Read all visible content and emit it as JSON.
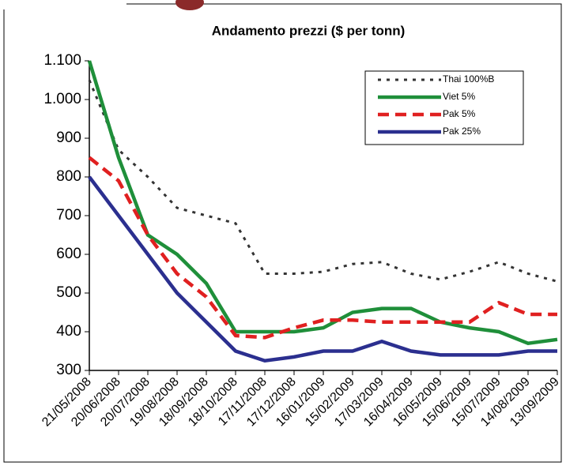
{
  "chart_data": {
    "type": "line",
    "title": "Andamento prezzi ($ per tonn)",
    "categories": [
      "21/05/2008",
      "20/06/2008",
      "20/07/2008",
      "19/08/2008",
      "18/09/2008",
      "18/10/2008",
      "17/11/2008",
      "17/12/2008",
      "16/01/2009",
      "15/02/2009",
      "17/03/2009",
      "16/04/2009",
      "16/05/2009",
      "15/06/2009",
      "15/07/2009",
      "14/08/2009",
      "13/09/2009"
    ],
    "series": [
      {
        "name": "Thai 100%B",
        "color": "#333333",
        "dash": "dotted",
        "values": [
          1050,
          870,
          800,
          720,
          700,
          680,
          550,
          550,
          555,
          575,
          580,
          550,
          535,
          555,
          580,
          550,
          530
        ]
      },
      {
        "name": "Viet 5%",
        "color": "#1f8f3a",
        "dash": "solid",
        "values": [
          1100,
          850,
          650,
          600,
          525,
          400,
          400,
          400,
          410,
          450,
          460,
          460,
          425,
          410,
          400,
          370,
          380
        ]
      },
      {
        "name": "Pak 5%",
        "color": "#e02020",
        "dash": "dashed",
        "values": [
          850,
          790,
          650,
          550,
          490,
          390,
          385,
          410,
          430,
          430,
          425,
          425,
          425,
          425,
          475,
          445,
          445
        ]
      },
      {
        "name": "Pak 25%",
        "color": "#2b2f8f",
        "dash": "solid",
        "values": [
          800,
          700,
          600,
          500,
          425,
          350,
          325,
          335,
          350,
          350,
          375,
          350,
          340,
          340,
          340,
          350,
          350
        ]
      }
    ],
    "ylim": [
      300,
      1100
    ],
    "yticks": [
      300,
      400,
      500,
      600,
      700,
      800,
      900,
      {
        "value": 1000,
        "label": "1.000"
      },
      {
        "value": 1100,
        "label": "1.100"
      }
    ]
  }
}
